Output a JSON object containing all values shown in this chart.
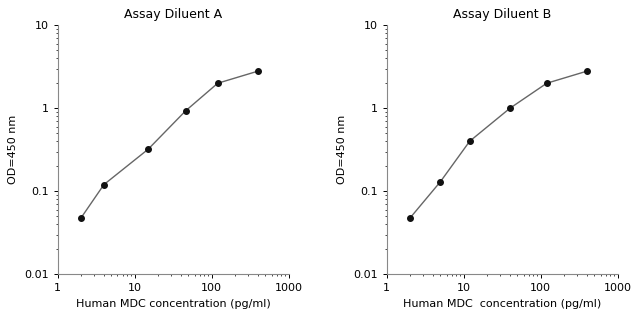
{
  "panel_A": {
    "title": "Assay Diluent A",
    "x": [
      2,
      4,
      15,
      46,
      120,
      400
    ],
    "y": [
      0.047,
      0.12,
      0.32,
      0.93,
      2.0,
      2.8
    ],
    "xlabel": "Human MDC concentration (pg/ml)",
    "ylabel": "OD=450 nm",
    "xlim": [
      1,
      1000
    ],
    "ylim": [
      0.01,
      10
    ]
  },
  "panel_B": {
    "title": "Assay Diluent B",
    "x": [
      2,
      5,
      12,
      40,
      120,
      400
    ],
    "y": [
      0.047,
      0.13,
      0.4,
      1.0,
      2.0,
      2.8
    ],
    "xlabel": "Human MDC  concentration (pg/ml)",
    "ylabel": "OD=450 nm",
    "xlim": [
      1,
      1000
    ],
    "ylim": [
      0.01,
      10
    ]
  },
  "line_color": "#666666",
  "marker_color": "#111111",
  "bg_color": "#ffffff",
  "marker_size": 4,
  "linewidth": 1.0,
  "yticks": [
    0.01,
    0.1,
    1,
    10
  ],
  "ytick_labels": [
    "0.01",
    "0.1",
    "1",
    "10"
  ],
  "xticks": [
    1,
    10,
    100,
    1000
  ],
  "xtick_labels": [
    "1",
    "10",
    "100",
    "1000"
  ]
}
